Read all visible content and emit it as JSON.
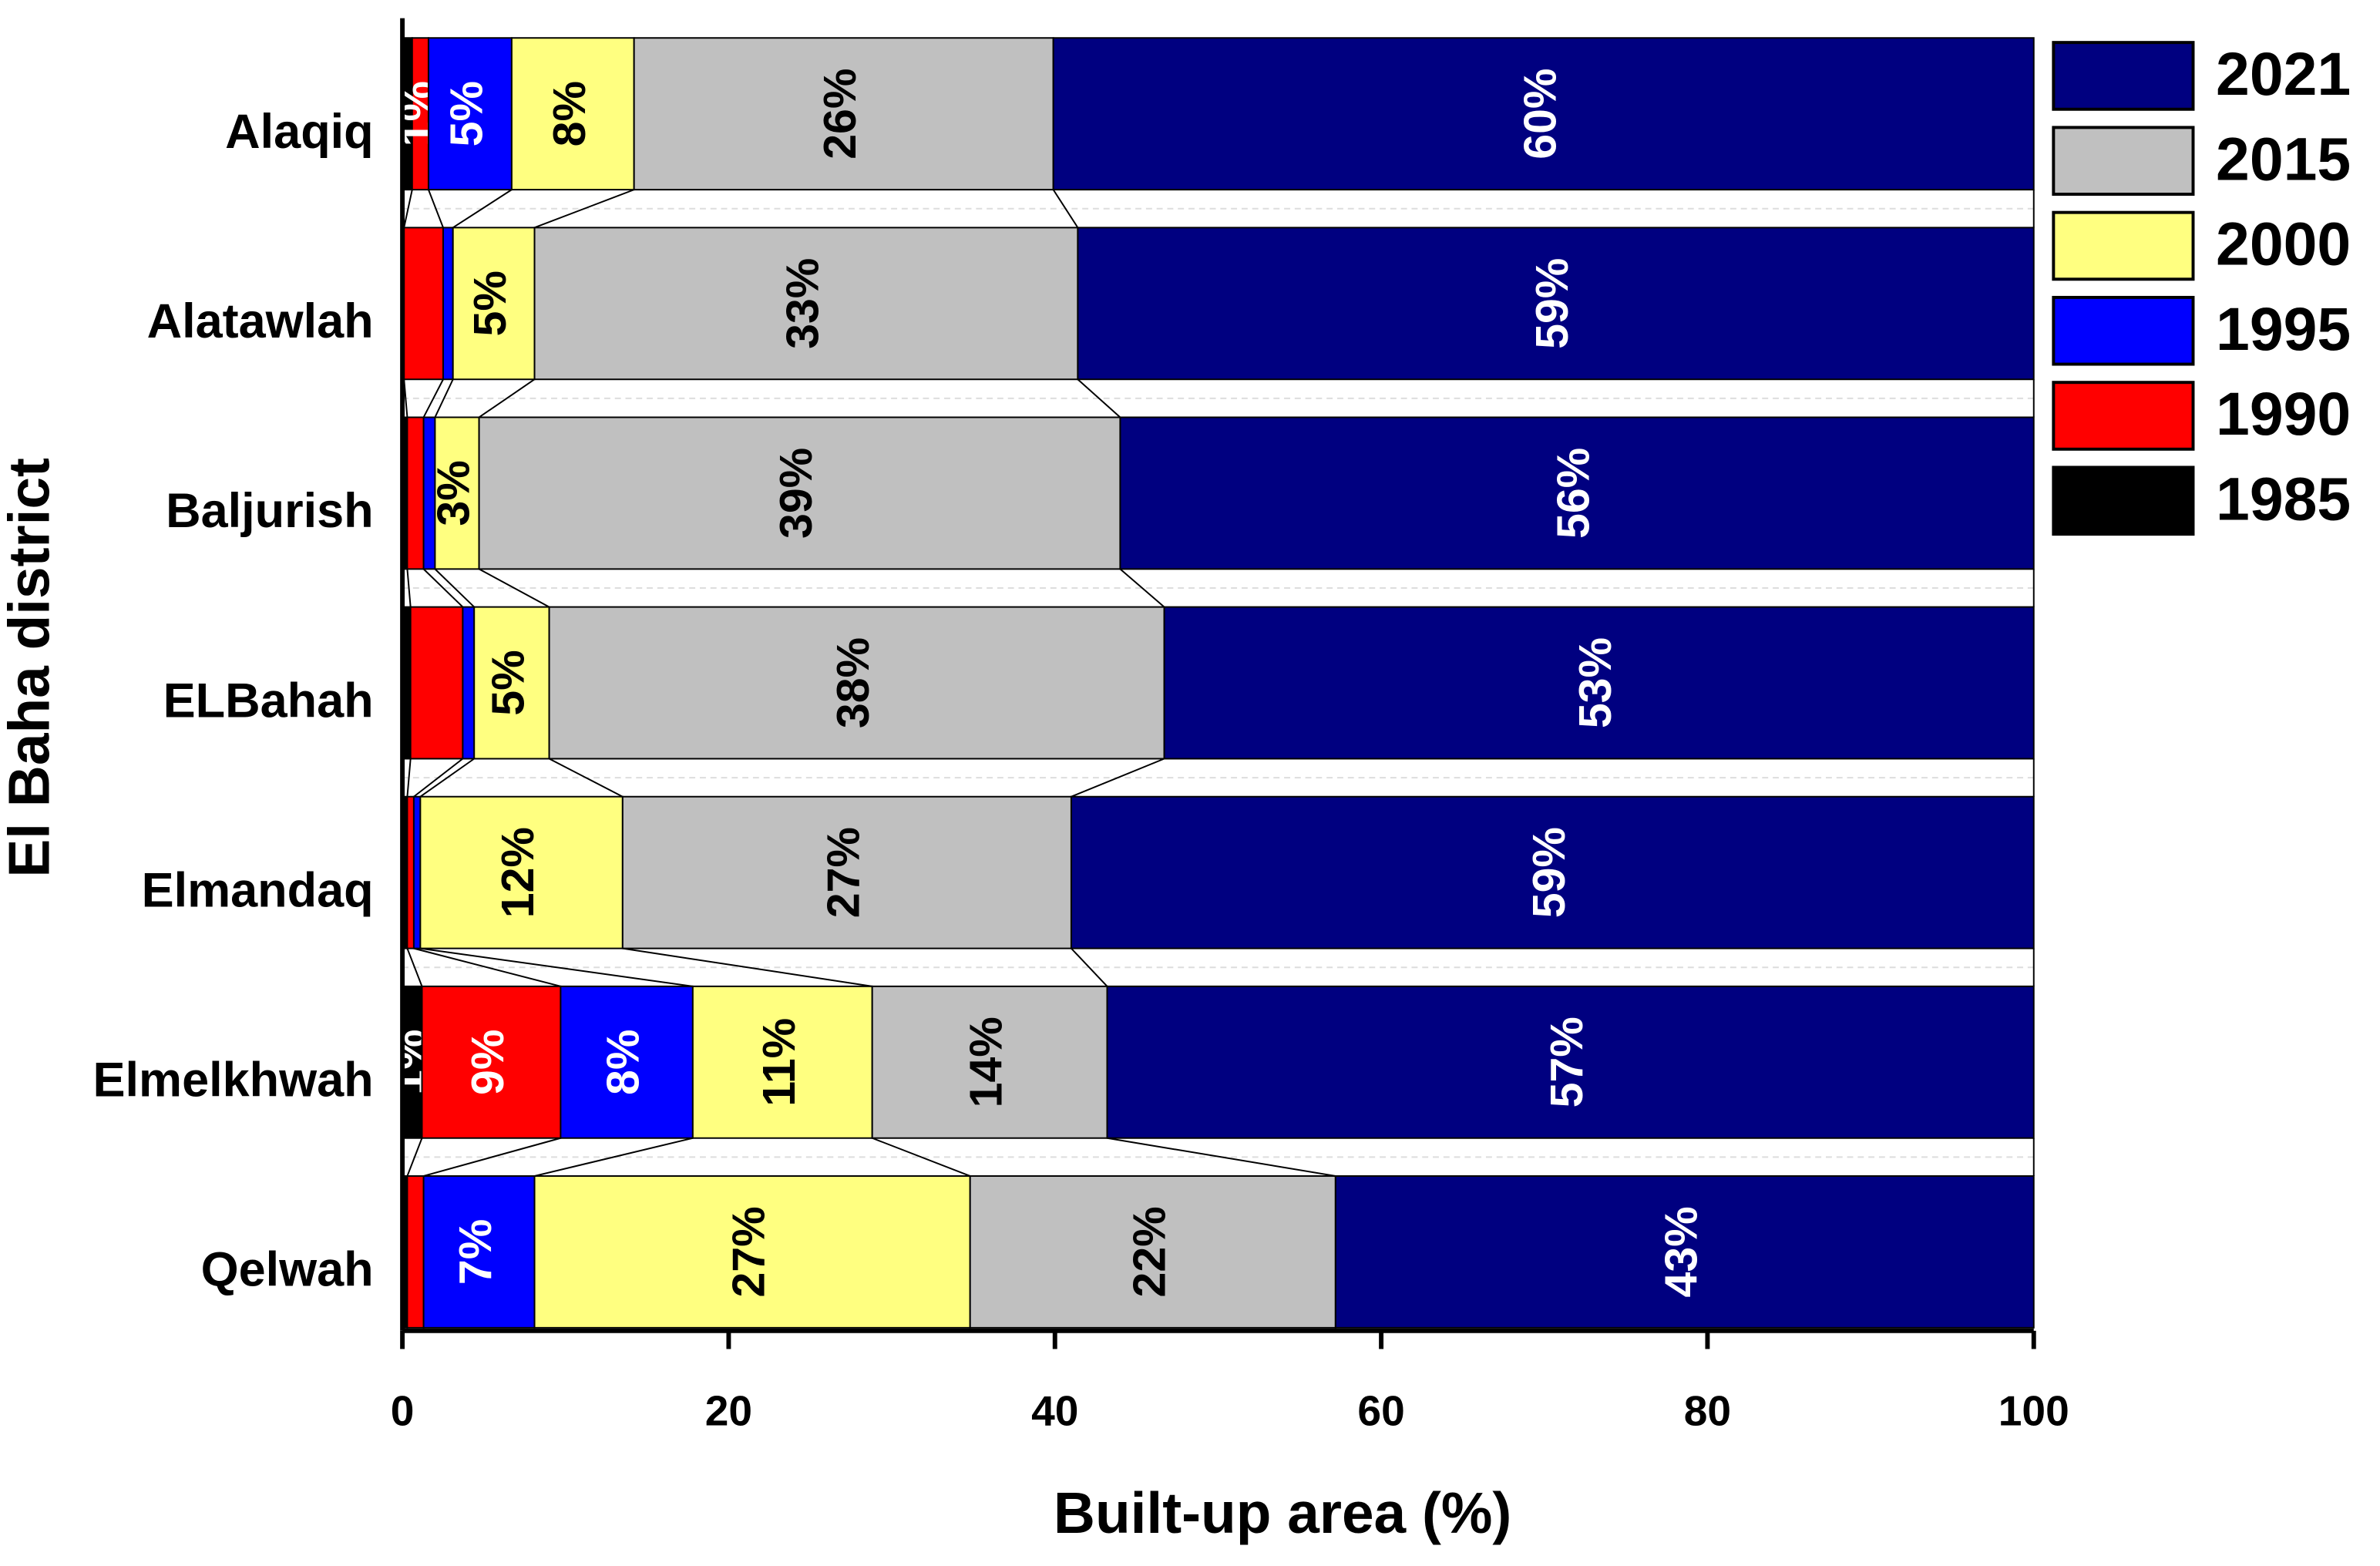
{
  "chart_data": {
    "type": "stacked-barh",
    "x_label": "Built-up area (%)",
    "y_label": "El Baha district",
    "categories": [
      "Alaqiq",
      "Alatawlah",
      "Baljurish",
      "ELBahah",
      "Elmandaq",
      "Elmelkhwah",
      "Qelwah"
    ],
    "series": [
      {
        "name": "1985",
        "color": "#000000",
        "values": [
          0.6,
          0.1,
          0.3,
          0.5,
          0.3,
          1.2,
          0.3
        ],
        "value_labels": [
          null,
          null,
          null,
          null,
          null,
          "1%",
          null
        ]
      },
      {
        "name": "1990",
        "color": "#ff0000",
        "values": [
          1.0,
          2.4,
          1.0,
          3.2,
          0.4,
          8.5,
          1.0
        ],
        "value_labels": [
          "1%",
          null,
          null,
          null,
          null,
          "9%",
          null
        ]
      },
      {
        "name": "1995",
        "color": "#0000ff",
        "values": [
          5.1,
          0.6,
          0.7,
          0.7,
          0.4,
          8.1,
          6.8
        ],
        "value_labels": [
          "5%",
          null,
          null,
          null,
          null,
          "8%",
          "7%"
        ]
      },
      {
        "name": "2000",
        "color": "#ffff80",
        "values": [
          7.5,
          5.0,
          2.7,
          4.6,
          12.4,
          11.0,
          26.7
        ],
        "value_labels": [
          "8%",
          "5%",
          "3%",
          "5%",
          "12%",
          "11%",
          "27%"
        ]
      },
      {
        "name": "2015",
        "color": "#c0c0c0",
        "values": [
          25.7,
          33.3,
          39.3,
          37.7,
          27.5,
          14.4,
          22.4
        ],
        "value_labels": [
          "26%",
          "33%",
          "39%",
          "38%",
          "27%",
          "14%",
          "22%"
        ]
      },
      {
        "name": "2021",
        "color": "#000080",
        "values": [
          60.1,
          58.6,
          56.0,
          53.3,
          59.0,
          56.8,
          42.8
        ],
        "value_labels": [
          "60%",
          "59%",
          "56%",
          "53%",
          "59%",
          "57%",
          "43%"
        ]
      }
    ],
    "xlim": [
      0,
      100
    ],
    "xticks": [
      0,
      20,
      40,
      60,
      80,
      100
    ],
    "legend": "right"
  }
}
